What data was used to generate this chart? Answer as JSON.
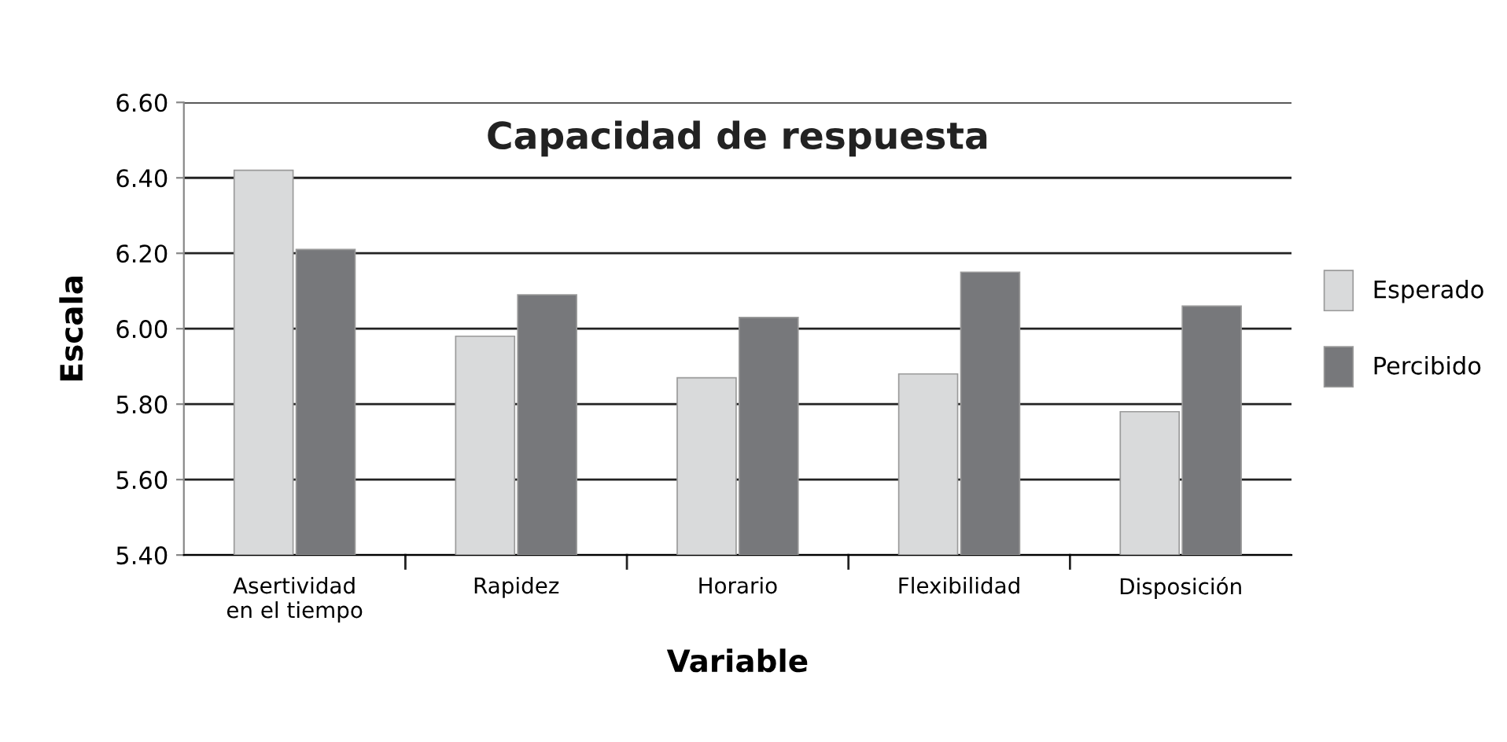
{
  "chart_data": {
    "type": "bar",
    "title": "Capacidad de respuesta",
    "xlabel": "Variable",
    "ylabel": "Escala",
    "categories": [
      "Asertividad\nen el tiempo",
      "Rapidez",
      "Horario",
      "Flexibilidad",
      "Disposición"
    ],
    "series": [
      {
        "name": "Esperado",
        "color": "#d9dadb",
        "values": [
          6.42,
          5.98,
          5.87,
          5.88,
          5.78
        ]
      },
      {
        "name": "Percibido",
        "color": "#77787b",
        "values": [
          6.21,
          6.09,
          6.03,
          6.15,
          6.06
        ]
      }
    ],
    "ylim": [
      5.4,
      6.6
    ],
    "yticks": [
      {
        "value": 5.4,
        "label": "5.40"
      },
      {
        "value": 5.6,
        "label": "5.60"
      },
      {
        "value": 5.8,
        "label": "5.80"
      },
      {
        "value": 6.0,
        "label": "6.00"
      },
      {
        "value": 6.2,
        "label": "6.20"
      },
      {
        "value": 6.4,
        "label": "6.40"
      },
      {
        "value": 6.6,
        "label": "6.60"
      }
    ],
    "grid": "y",
    "legend": "right"
  }
}
